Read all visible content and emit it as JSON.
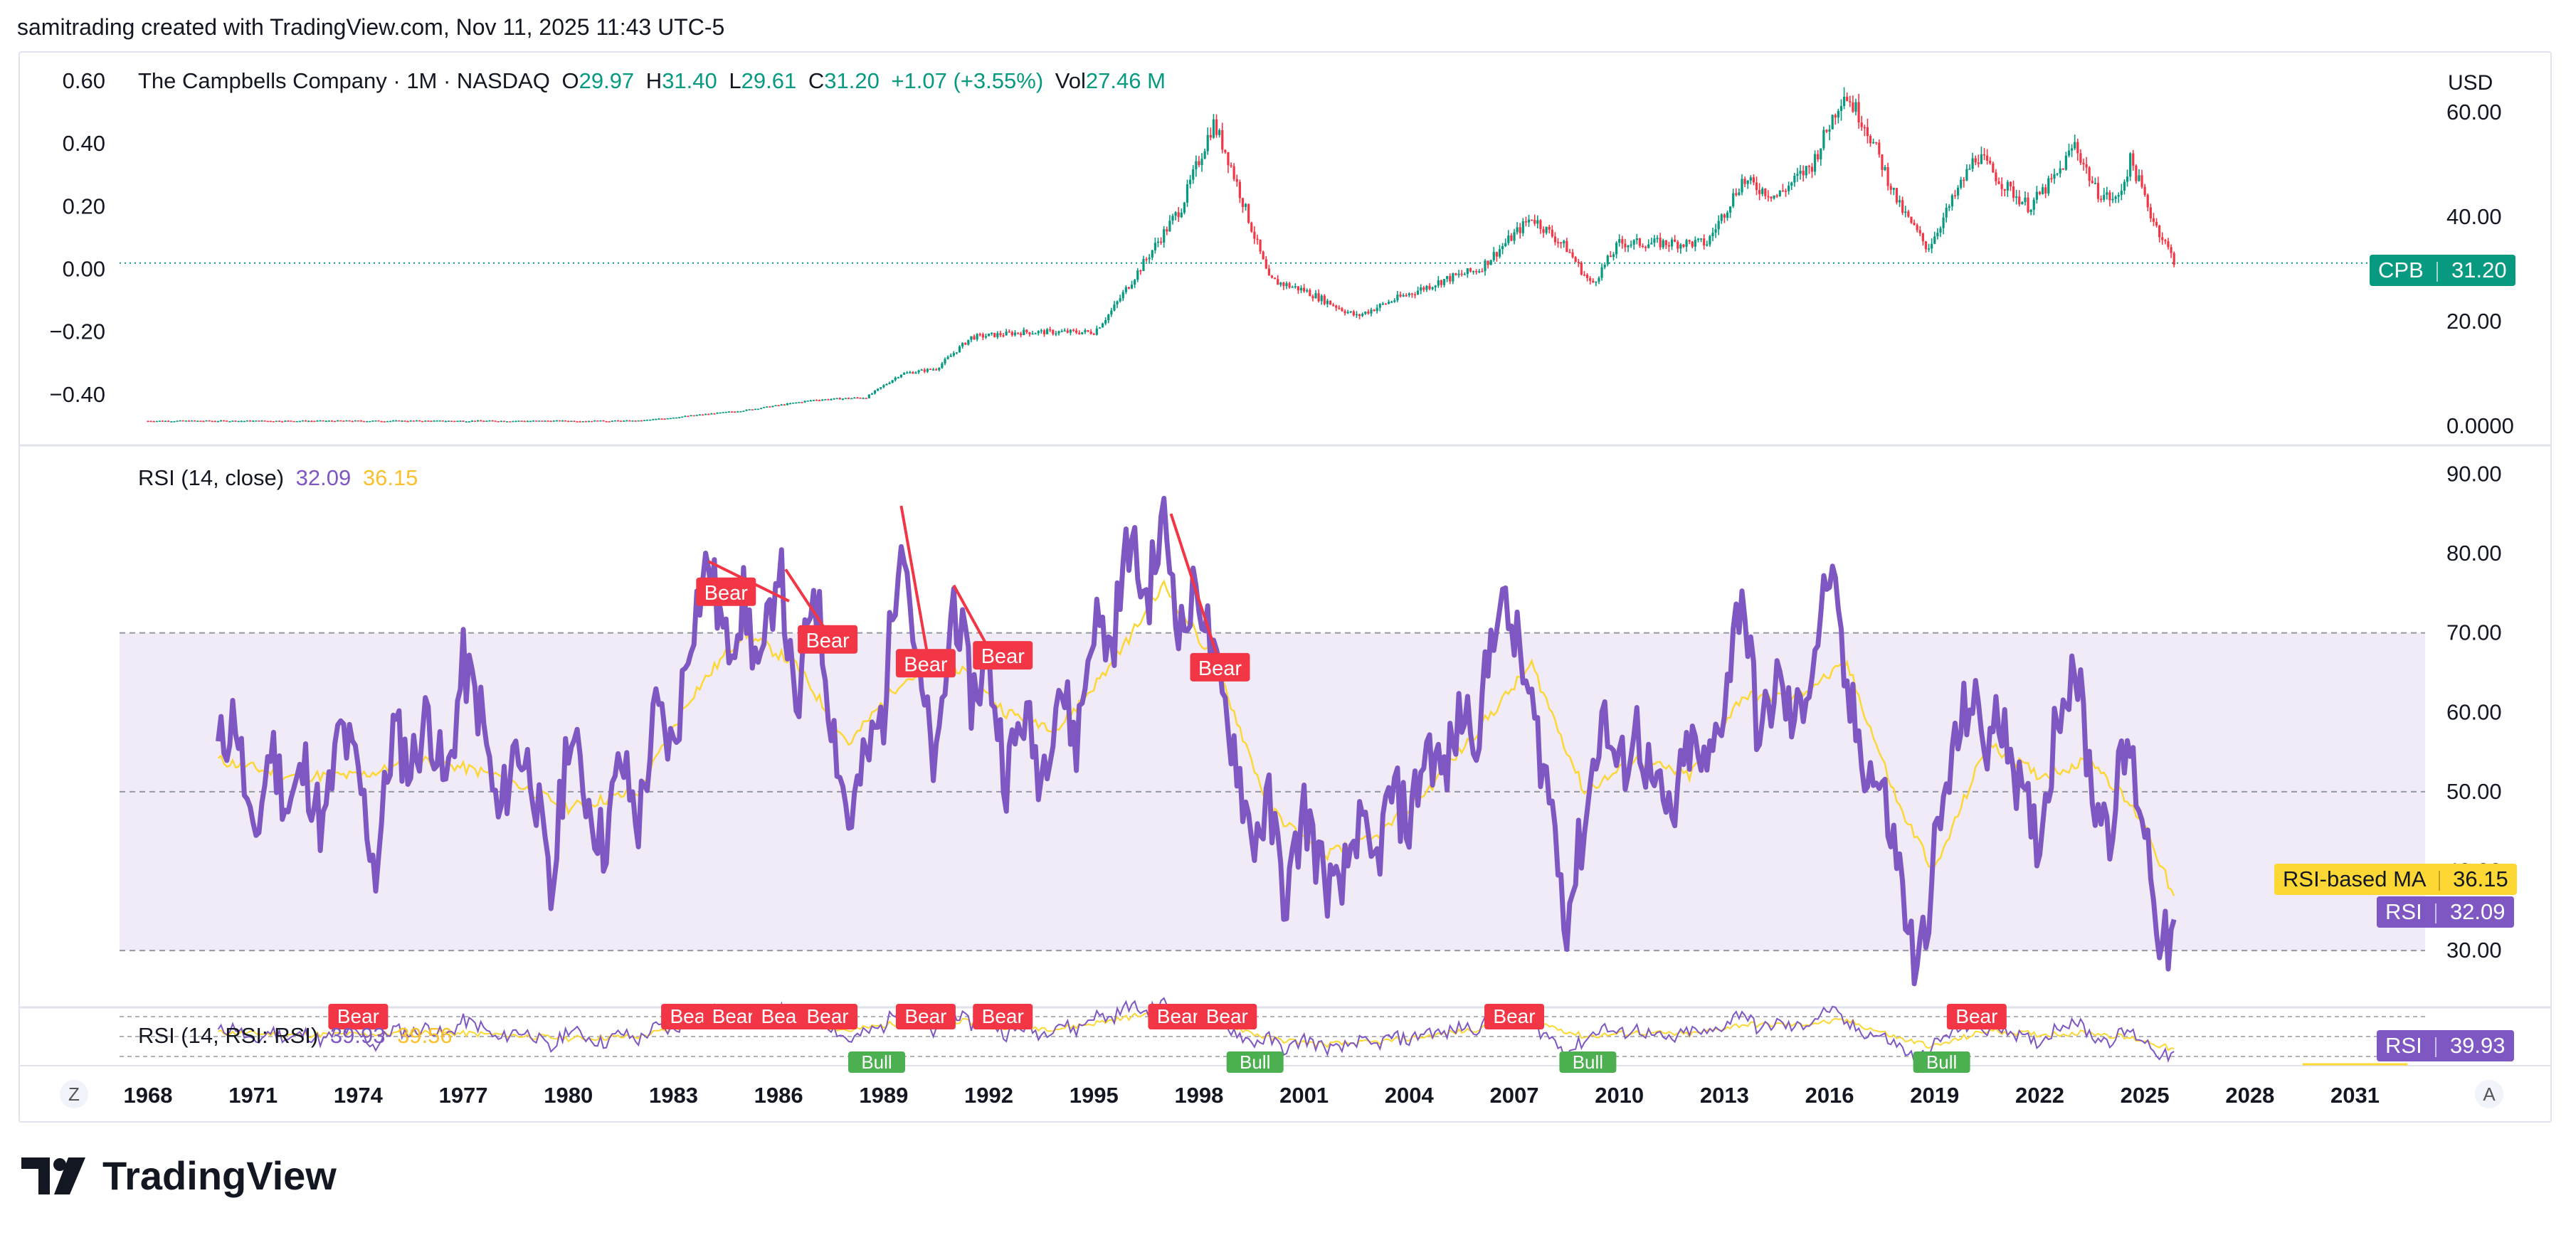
{
  "header": {
    "credit": "samitrading created with TradingView.com, Nov 11, 2025 11:43 UTC-5"
  },
  "price_pane": {
    "symbol": "The Campbells Company · 1M · NASDAQ",
    "o_label": "O",
    "o_value": "29.97",
    "h_label": "H",
    "h_value": "31.40",
    "l_label": "L",
    "l_value": "29.61",
    "c_label": "C",
    "c_value": "31.20",
    "change": "+1.07 (+3.55%)",
    "vol_label": "Vol",
    "vol_value": "27.46 M",
    "currency": "USD",
    "last_tag_symbol": "CPB",
    "last_tag_value": "31.20"
  },
  "rsi_pane": {
    "title": "RSI (14, close)",
    "rsi_value": "32.09",
    "ma_value": "36.15",
    "ma_tag_label": "RSI-based MA",
    "ma_tag_value": "36.15",
    "rsi_tag_label": "RSI",
    "rsi_tag_value": "32.09"
  },
  "rsi2_pane": {
    "title": "RSI (14, RSI: RSI)",
    "value1": "39.93",
    "value2": "39.56",
    "tag_label": "RSI",
    "tag_value": "39.93"
  },
  "buttons": {
    "left": "Z",
    "right": "A"
  },
  "logo": {
    "word": "TradingView"
  },
  "colors": {
    "up": "#089981",
    "down": "#f23645",
    "rsi": "#7e57c2",
    "ma": "#fdd835",
    "band": "#ede7f6",
    "bear": "#f23645",
    "bull": "#4caf50"
  },
  "chart_data": {
    "type": "candlestick",
    "timeframe": "1M",
    "x_ticks": [
      "1968",
      "1971",
      "1974",
      "1977",
      "1980",
      "1983",
      "1986",
      "1989",
      "1992",
      "1995",
      "1998",
      "2001",
      "2004",
      "2007",
      "2010",
      "2013",
      "2016",
      "2019",
      "2022",
      "2025",
      "2028",
      "2031"
    ],
    "left_axis_ticks": [
      "0.60",
      "0.40",
      "0.20",
      "0.00",
      "−0.20",
      "−0.40"
    ],
    "left_axis_range": [
      -0.5,
      0.6
    ],
    "price_axis_ticks": [
      "60.00",
      "40.00",
      "20.00",
      "0.0000"
    ],
    "price_range": [
      0,
      66
    ],
    "price_series": [
      [
        1968.0,
        1.0
      ],
      [
        1975.0,
        1.0
      ],
      [
        1982.0,
        1.0
      ],
      [
        1985.0,
        3.0
      ],
      [
        1987.0,
        5.0
      ],
      [
        1988.5,
        5.5
      ],
      [
        1989.5,
        10
      ],
      [
        1990.5,
        11
      ],
      [
        1991.5,
        17
      ],
      [
        1993.0,
        18
      ],
      [
        1995.0,
        18
      ],
      [
        1995.5,
        22
      ],
      [
        1996.5,
        32
      ],
      [
        1997.5,
        42
      ],
      [
        1998.4,
        58
      ],
      [
        1998.8,
        52
      ],
      [
        1999.5,
        38
      ],
      [
        2000.0,
        28
      ],
      [
        2001.0,
        26
      ],
      [
        2002.5,
        21
      ],
      [
        2003.5,
        24
      ],
      [
        2005.0,
        28
      ],
      [
        2006.0,
        30
      ],
      [
        2007.5,
        40
      ],
      [
        2008.5,
        34
      ],
      [
        2009.2,
        27
      ],
      [
        2010.0,
        35
      ],
      [
        2011.5,
        35
      ],
      [
        2012.5,
        35
      ],
      [
        2013.5,
        47
      ],
      [
        2014.5,
        44
      ],
      [
        2015.5,
        50
      ],
      [
        2016.4,
        64
      ],
      [
        2017.0,
        58
      ],
      [
        2018.0,
        42
      ],
      [
        2018.8,
        34
      ],
      [
        2019.5,
        43
      ],
      [
        2020.2,
        52
      ],
      [
        2021.0,
        46
      ],
      [
        2021.7,
        42
      ],
      [
        2022.5,
        48
      ],
      [
        2023.0,
        54
      ],
      [
        2023.6,
        45
      ],
      [
        2024.2,
        43
      ],
      [
        2024.6,
        51
      ],
      [
        2025.2,
        40
      ],
      [
        2025.87,
        31.2
      ]
    ],
    "last_price": 31.2,
    "rsi_axis_ticks": [
      "90.00",
      "80.00",
      "70.00",
      "60.00",
      "50.00",
      "40.00",
      "30.00"
    ],
    "rsi_range": [
      25,
      92
    ],
    "rsi_band": [
      30,
      70
    ],
    "rsi_series": [
      [
        1970.0,
        55
      ],
      [
        1970.5,
        60
      ],
      [
        1971.0,
        42
      ],
      [
        1971.5,
        56
      ],
      [
        1972.0,
        48
      ],
      [
        1972.5,
        53
      ],
      [
        1973.0,
        45
      ],
      [
        1973.5,
        58
      ],
      [
        1974.0,
        52
      ],
      [
        1974.5,
        40
      ],
      [
        1975.0,
        58
      ],
      [
        1975.5,
        53
      ],
      [
        1976.0,
        60
      ],
      [
        1976.5,
        50
      ],
      [
        1977.0,
        66
      ],
      [
        1977.5,
        60
      ],
      [
        1978.0,
        46
      ],
      [
        1978.5,
        56
      ],
      [
        1979.0,
        52
      ],
      [
        1979.5,
        36
      ],
      [
        1980.0,
        58
      ],
      [
        1980.5,
        50
      ],
      [
        1981.0,
        43
      ],
      [
        1981.5,
        54
      ],
      [
        1982.0,
        46
      ],
      [
        1982.5,
        60
      ],
      [
        1983.0,
        55
      ],
      [
        1983.5,
        71
      ],
      [
        1984.0,
        79
      ],
      [
        1984.5,
        68
      ],
      [
        1985.0,
        74
      ],
      [
        1985.5,
        64
      ],
      [
        1986.0,
        80
      ],
      [
        1986.5,
        58
      ],
      [
        1987.0,
        77
      ],
      [
        1987.5,
        60
      ],
      [
        1988.0,
        46
      ],
      [
        1988.5,
        54
      ],
      [
        1989.0,
        60
      ],
      [
        1989.5,
        85
      ],
      [
        1990.0,
        64
      ],
      [
        1990.5,
        52
      ],
      [
        1991.0,
        75
      ],
      [
        1991.5,
        62
      ],
      [
        1992.0,
        66
      ],
      [
        1992.5,
        52
      ],
      [
        1993.0,
        60
      ],
      [
        1993.5,
        52
      ],
      [
        1994.0,
        64
      ],
      [
        1994.5,
        56
      ],
      [
        1995.0,
        72
      ],
      [
        1995.5,
        68
      ],
      [
        1996.0,
        82
      ],
      [
        1996.5,
        74
      ],
      [
        1997.0,
        84
      ],
      [
        1997.5,
        70
      ],
      [
        1998.0,
        76
      ],
      [
        1998.5,
        64
      ],
      [
        1999.0,
        56
      ],
      [
        1999.5,
        44
      ],
      [
        2000.0,
        48
      ],
      [
        2000.5,
        36
      ],
      [
        2001.0,
        48
      ],
      [
        2001.5,
        40
      ],
      [
        2002.0,
        36
      ],
      [
        2002.5,
        46
      ],
      [
        2003.0,
        40
      ],
      [
        2003.5,
        50
      ],
      [
        2004.0,
        46
      ],
      [
        2004.5,
        56
      ],
      [
        2005.0,
        52
      ],
      [
        2005.5,
        60
      ],
      [
        2006.0,
        58
      ],
      [
        2006.5,
        74
      ],
      [
        2007.0,
        70
      ],
      [
        2007.5,
        60
      ],
      [
        2008.0,
        50
      ],
      [
        2008.5,
        34
      ],
      [
        2009.0,
        46
      ],
      [
        2009.5,
        60
      ],
      [
        2010.0,
        52
      ],
      [
        2010.5,
        58
      ],
      [
        2011.0,
        50
      ],
      [
        2011.5,
        46
      ],
      [
        2012.0,
        56
      ],
      [
        2012.5,
        52
      ],
      [
        2013.0,
        62
      ],
      [
        2013.5,
        76
      ],
      [
        2014.0,
        56
      ],
      [
        2014.5,
        64
      ],
      [
        2015.0,
        58
      ],
      [
        2015.5,
        66
      ],
      [
        2016.0,
        78
      ],
      [
        2016.5,
        62
      ],
      [
        2017.0,
        54
      ],
      [
        2017.5,
        50
      ],
      [
        2018.0,
        40
      ],
      [
        2018.5,
        26
      ],
      [
        2019.0,
        42
      ],
      [
        2019.5,
        54
      ],
      [
        2020.0,
        62
      ],
      [
        2020.5,
        56
      ],
      [
        2021.0,
        60
      ],
      [
        2021.5,
        48
      ],
      [
        2022.0,
        44
      ],
      [
        2022.5,
        60
      ],
      [
        2023.0,
        67
      ],
      [
        2023.5,
        50
      ],
      [
        2024.0,
        46
      ],
      [
        2024.5,
        56
      ],
      [
        2025.0,
        46
      ],
      [
        2025.5,
        30
      ],
      [
        2025.87,
        32.09
      ]
    ],
    "rsi_ma_series": [
      [
        1970.0,
        54
      ],
      [
        1972.0,
        52
      ],
      [
        1974.0,
        52
      ],
      [
        1976.0,
        54
      ],
      [
        1978.0,
        52
      ],
      [
        1980.0,
        48
      ],
      [
        1982.0,
        50
      ],
      [
        1983.5,
        62
      ],
      [
        1985.0,
        70
      ],
      [
        1986.5,
        66
      ],
      [
        1988.0,
        56
      ],
      [
        1989.5,
        64
      ],
      [
        1991.0,
        66
      ],
      [
        1992.5,
        60
      ],
      [
        1994.0,
        58
      ],
      [
        1995.5,
        66
      ],
      [
        1997.0,
        76
      ],
      [
        1998.5,
        66
      ],
      [
        2000.0,
        48
      ],
      [
        2001.5,
        42
      ],
      [
        2003.0,
        44
      ],
      [
        2004.5,
        50
      ],
      [
        2006.0,
        58
      ],
      [
        2007.5,
        66
      ],
      [
        2009.0,
        50
      ],
      [
        2010.5,
        54
      ],
      [
        2012.0,
        52
      ],
      [
        2013.5,
        62
      ],
      [
        2015.0,
        62
      ],
      [
        2016.5,
        66
      ],
      [
        2018.0,
        48
      ],
      [
        2019.0,
        40
      ],
      [
        2020.5,
        56
      ],
      [
        2022.0,
        52
      ],
      [
        2023.5,
        54
      ],
      [
        2025.0,
        46
      ],
      [
        2025.87,
        36.15
      ]
    ],
    "rsi_labels": [
      {
        "text": "Bear",
        "x": 1984.5,
        "y": 75
      },
      {
        "text": "Bear",
        "x": 1987.4,
        "y": 69
      },
      {
        "text": "Bear",
        "x": 1990.2,
        "y": 66
      },
      {
        "text": "Bear",
        "x": 1992.4,
        "y": 67
      },
      {
        "text": "Bear",
        "x": 1998.6,
        "y": 65.5
      }
    ],
    "rsi_divergence_lines": [
      [
        [
          1984.0,
          79
        ],
        [
          1986.3,
          74
        ]
      ],
      [
        [
          1986.2,
          78
        ],
        [
          1987.4,
          70
        ]
      ],
      [
        [
          1989.5,
          86
        ],
        [
          1990.3,
          66
        ]
      ],
      [
        [
          1991.0,
          76
        ],
        [
          1992.0,
          68
        ]
      ],
      [
        [
          1997.2,
          85
        ],
        [
          1998.6,
          66
        ]
      ]
    ],
    "rsi2_labels": [
      {
        "text": "Bear",
        "x": 1974.0
      },
      {
        "text": "Bear",
        "x": 1983.5
      },
      {
        "text": "Bear",
        "x": 1984.7
      },
      {
        "text": "Bear",
        "x": 1986.1
      },
      {
        "text": "Bear",
        "x": 1987.4
      },
      {
        "text": "Bear",
        "x": 1990.2
      },
      {
        "text": "Bear",
        "x": 1992.4
      },
      {
        "text": "Bear",
        "x": 1997.4
      },
      {
        "text": "Bear",
        "x": 1998.8
      },
      {
        "text": "Bear",
        "x": 2007.0
      },
      {
        "text": "Bear",
        "x": 2020.2
      }
    ],
    "rsi2_bull_labels": [
      {
        "text": "Bull",
        "x": 1988.8
      },
      {
        "text": "Bull",
        "x": 1999.6
      },
      {
        "text": "Bull",
        "x": 2009.1
      },
      {
        "text": "Bull",
        "x": 2019.2
      }
    ]
  }
}
